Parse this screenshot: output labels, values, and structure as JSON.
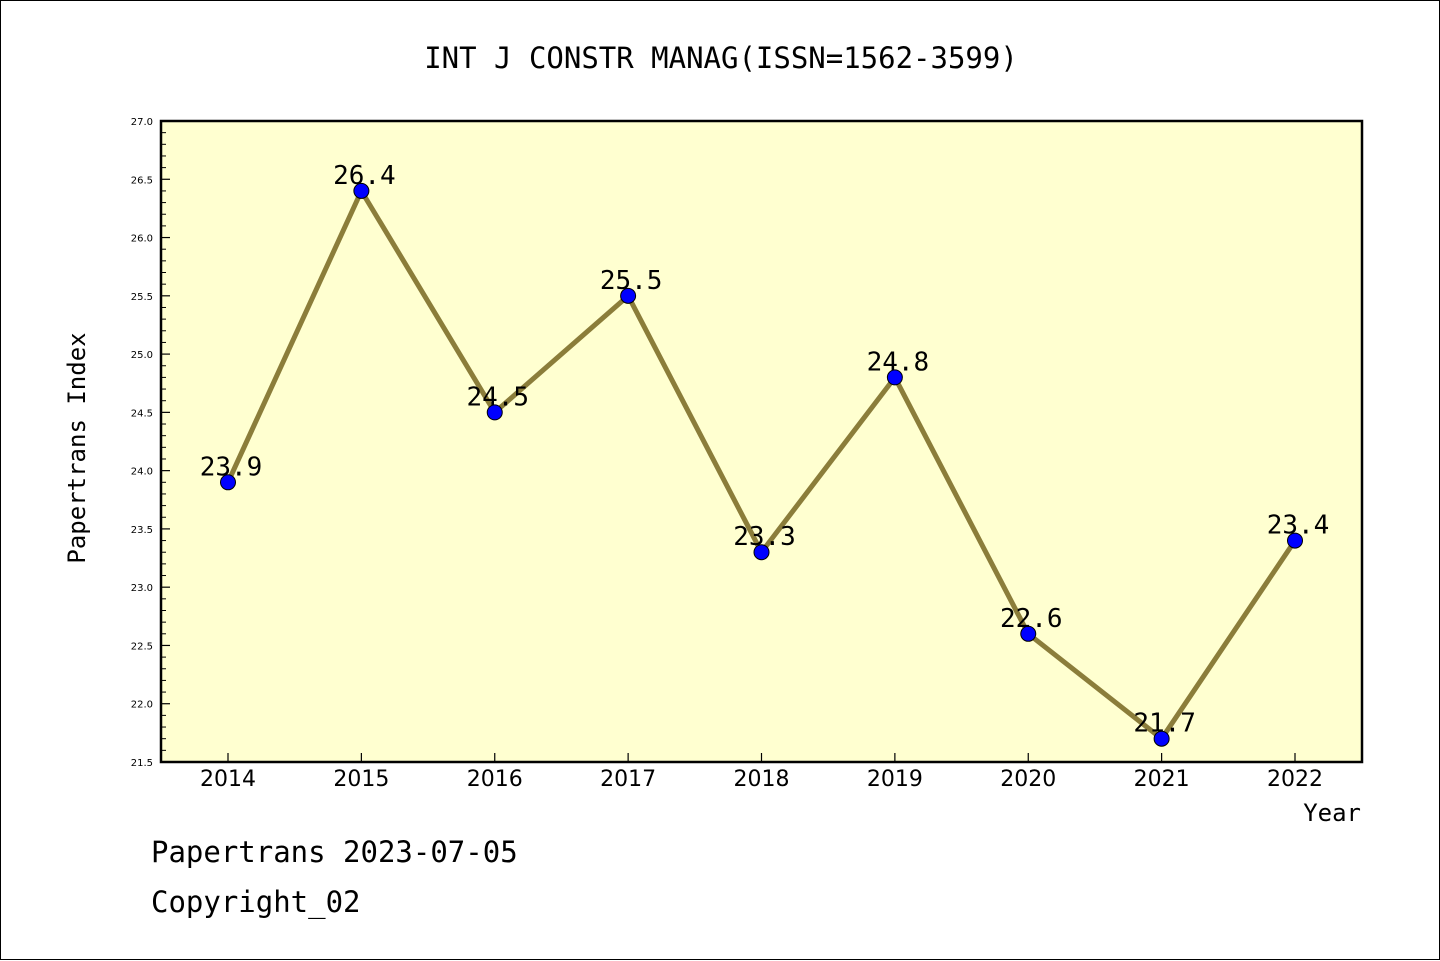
{
  "chart_data": {
    "type": "line",
    "title": "INT J CONSTR MANAG(ISSN=1562-3599)",
    "xlabel": "Year",
    "ylabel": "Papertrans Index",
    "categories": [
      "2014",
      "2015",
      "2016",
      "2017",
      "2018",
      "2019",
      "2020",
      "2021",
      "2022"
    ],
    "series": [
      {
        "values": [
          23.9,
          26.4,
          24.5,
          25.5,
          23.3,
          24.8,
          22.6,
          21.7,
          23.4
        ]
      }
    ],
    "data_labels": [
      "23.9",
      "26.4",
      "24.5",
      "25.5",
      "23.3",
      "24.8",
      "22.6",
      "21.7",
      "23.4"
    ],
    "ylim": [
      21.5,
      27.0
    ],
    "yticks": [
      "21.5",
      "22.0",
      "22.5",
      "23.0",
      "23.5",
      "24.0",
      "24.5",
      "25.0",
      "25.5",
      "26.0",
      "26.5",
      "27.0"
    ],
    "grid": false,
    "line_color": "#8b7d3a",
    "marker_color": "#0000ff",
    "plot_background": "#ffffd0"
  },
  "footer": {
    "line1": "Papertrans 2023-07-05",
    "line2": "Copyright_02"
  }
}
